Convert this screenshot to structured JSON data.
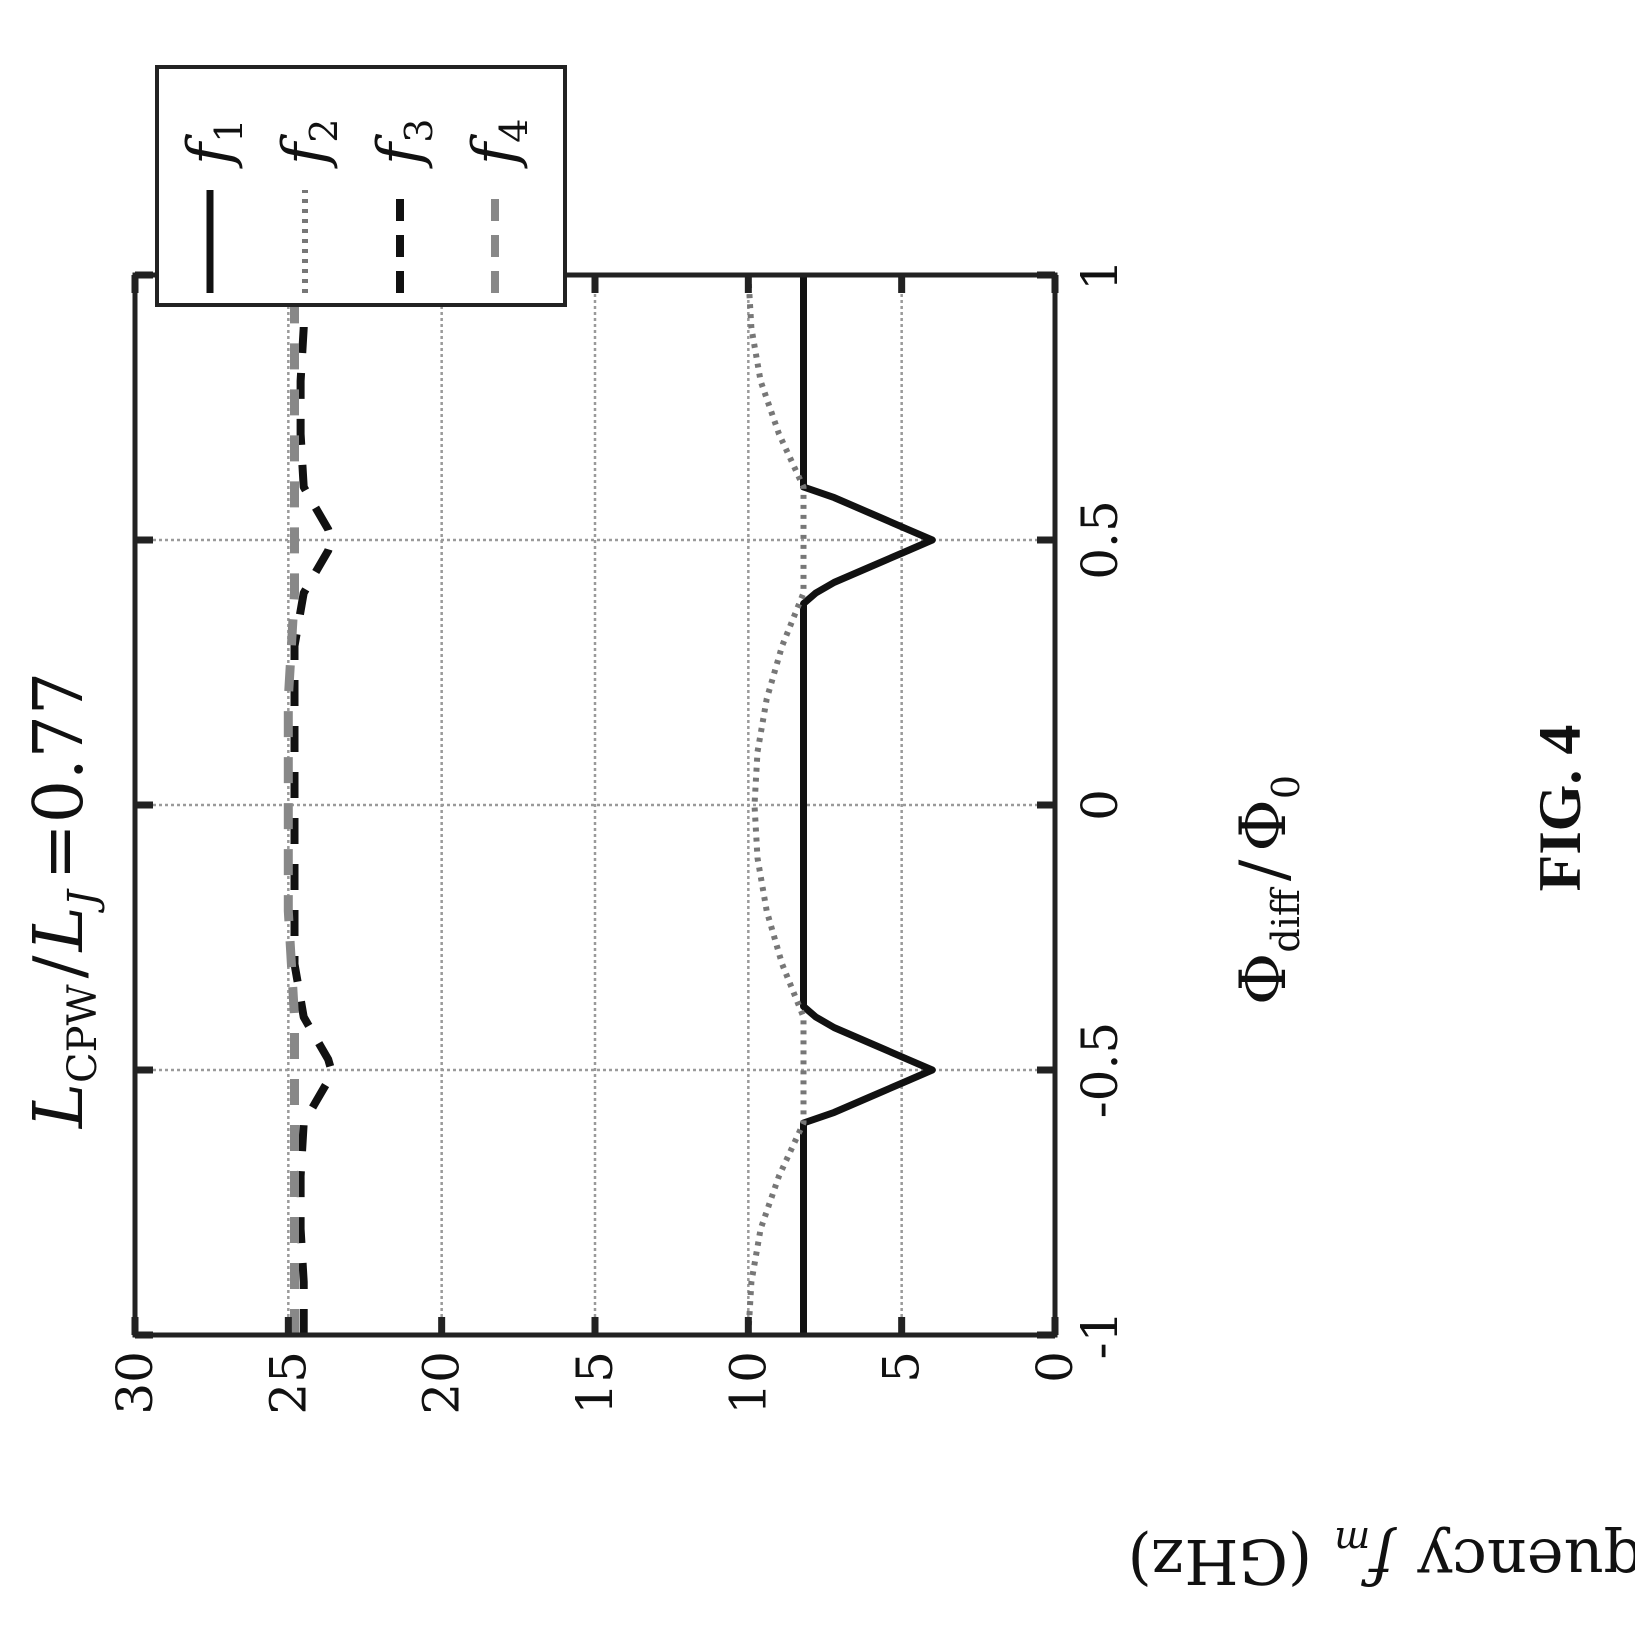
{
  "chart_data": {
    "type": "line",
    "title": "L_CPW / L_J = 0.77",
    "title_parts": {
      "l1": "L",
      "s1": "CPW",
      "sep": "/",
      "l2": "L",
      "s2": "J",
      "eq": "=0.77"
    },
    "xlabel": "Φ_diff / Φ_0",
    "xlabel_parts": {
      "a": "Φ",
      "a_sub": "diff",
      "sep": "/",
      "b": "Φ",
      "b_sub": "0"
    },
    "ylabel": "Frequency f_m (GHz)",
    "ylabel_parts": {
      "pre": "Frequency",
      "f": "f",
      "m": "m",
      "unit": "(GHz)"
    },
    "xlim": [
      -1,
      1
    ],
    "ylim": [
      0,
      30
    ],
    "xticks": [
      -1,
      -0.5,
      0,
      0.5,
      1
    ],
    "xtick_labels": [
      "-1",
      "-0.5",
      "0",
      "0.5",
      "1"
    ],
    "yticks": [
      0,
      5,
      10,
      15,
      20,
      25,
      30
    ],
    "ytick_labels": [
      "0",
      "5",
      "10",
      "15",
      "20",
      "25",
      "30"
    ],
    "grid": true,
    "legend_position": "top-right",
    "orientation": "rotated 90° counter-clockwise",
    "series": [
      {
        "name": "f_1",
        "label_main": "f",
        "label_sub": "1",
        "style": "solid",
        "color": "#111111",
        "x": [
          -1,
          -0.9,
          -0.8,
          -0.7,
          -0.6,
          -0.58,
          -0.55,
          -0.52,
          -0.5,
          -0.48,
          -0.45,
          -0.42,
          -0.4,
          -0.38,
          -0.3,
          -0.2,
          -0.1,
          0,
          0.1,
          0.2,
          0.3,
          0.38,
          0.4,
          0.42,
          0.45,
          0.48,
          0.5,
          0.52,
          0.55,
          0.58,
          0.6,
          0.7,
          0.8,
          0.9,
          1
        ],
        "y": [
          8.2,
          8.2,
          8.2,
          8.2,
          8.2,
          7.2,
          6.0,
          4.8,
          4.0,
          4.8,
          6.0,
          7.2,
          7.8,
          8.2,
          8.2,
          8.2,
          8.2,
          8.2,
          8.2,
          8.2,
          8.2,
          8.2,
          7.8,
          7.2,
          6.0,
          4.8,
          4.0,
          4.8,
          6.0,
          7.2,
          8.2,
          8.2,
          8.2,
          8.2,
          8.2
        ]
      },
      {
        "name": "f_2",
        "label_main": "f",
        "label_sub": "2",
        "style": "dotted",
        "color": "#777777",
        "x": [
          -1,
          -0.9,
          -0.8,
          -0.7,
          -0.6,
          -0.5,
          -0.4,
          -0.3,
          -0.2,
          -0.1,
          0,
          0.1,
          0.2,
          0.3,
          0.4,
          0.5,
          0.6,
          0.7,
          0.8,
          0.9,
          1
        ],
        "y": [
          10.0,
          9.9,
          9.6,
          9.0,
          8.2,
          8.2,
          8.2,
          8.9,
          9.4,
          9.7,
          9.8,
          9.7,
          9.4,
          8.9,
          8.2,
          8.2,
          8.2,
          9.0,
          9.6,
          9.9,
          10.0
        ]
      },
      {
        "name": "f_3",
        "label_main": "f",
        "label_sub": "3",
        "style": "dashed",
        "color": "#111111",
        "x": [
          -1,
          -0.9,
          -0.8,
          -0.7,
          -0.6,
          -0.56,
          -0.52,
          -0.5,
          -0.48,
          -0.44,
          -0.4,
          -0.3,
          -0.2,
          -0.1,
          0,
          0.1,
          0.2,
          0.3,
          0.4,
          0.44,
          0.48,
          0.5,
          0.52,
          0.56,
          0.6,
          0.7,
          0.8,
          0.9,
          1
        ],
        "y": [
          24.5,
          24.5,
          24.6,
          24.6,
          24.5,
          24.1,
          23.7,
          23.6,
          23.7,
          24.1,
          24.5,
          24.8,
          24.8,
          24.8,
          24.8,
          24.8,
          24.8,
          24.8,
          24.5,
          24.1,
          23.7,
          23.6,
          23.7,
          24.1,
          24.5,
          24.6,
          24.6,
          24.5,
          24.5
        ]
      },
      {
        "name": "f_4",
        "label_main": "f",
        "label_sub": "4",
        "style": "dashed",
        "color": "#888888",
        "x": [
          -1,
          -0.9,
          -0.8,
          -0.7,
          -0.6,
          -0.5,
          -0.4,
          -0.3,
          -0.2,
          -0.1,
          0,
          0.1,
          0.2,
          0.3,
          0.4,
          0.5,
          0.6,
          0.7,
          0.8,
          0.9,
          1
        ],
        "y": [
          24.8,
          24.8,
          24.8,
          24.8,
          24.8,
          24.8,
          24.8,
          24.9,
          25.0,
          25.0,
          25.0,
          25.0,
          25.0,
          24.9,
          24.8,
          24.8,
          24.8,
          24.8,
          24.8,
          24.8,
          24.8
        ]
      }
    ]
  },
  "figure_label": "FIG. 4"
}
